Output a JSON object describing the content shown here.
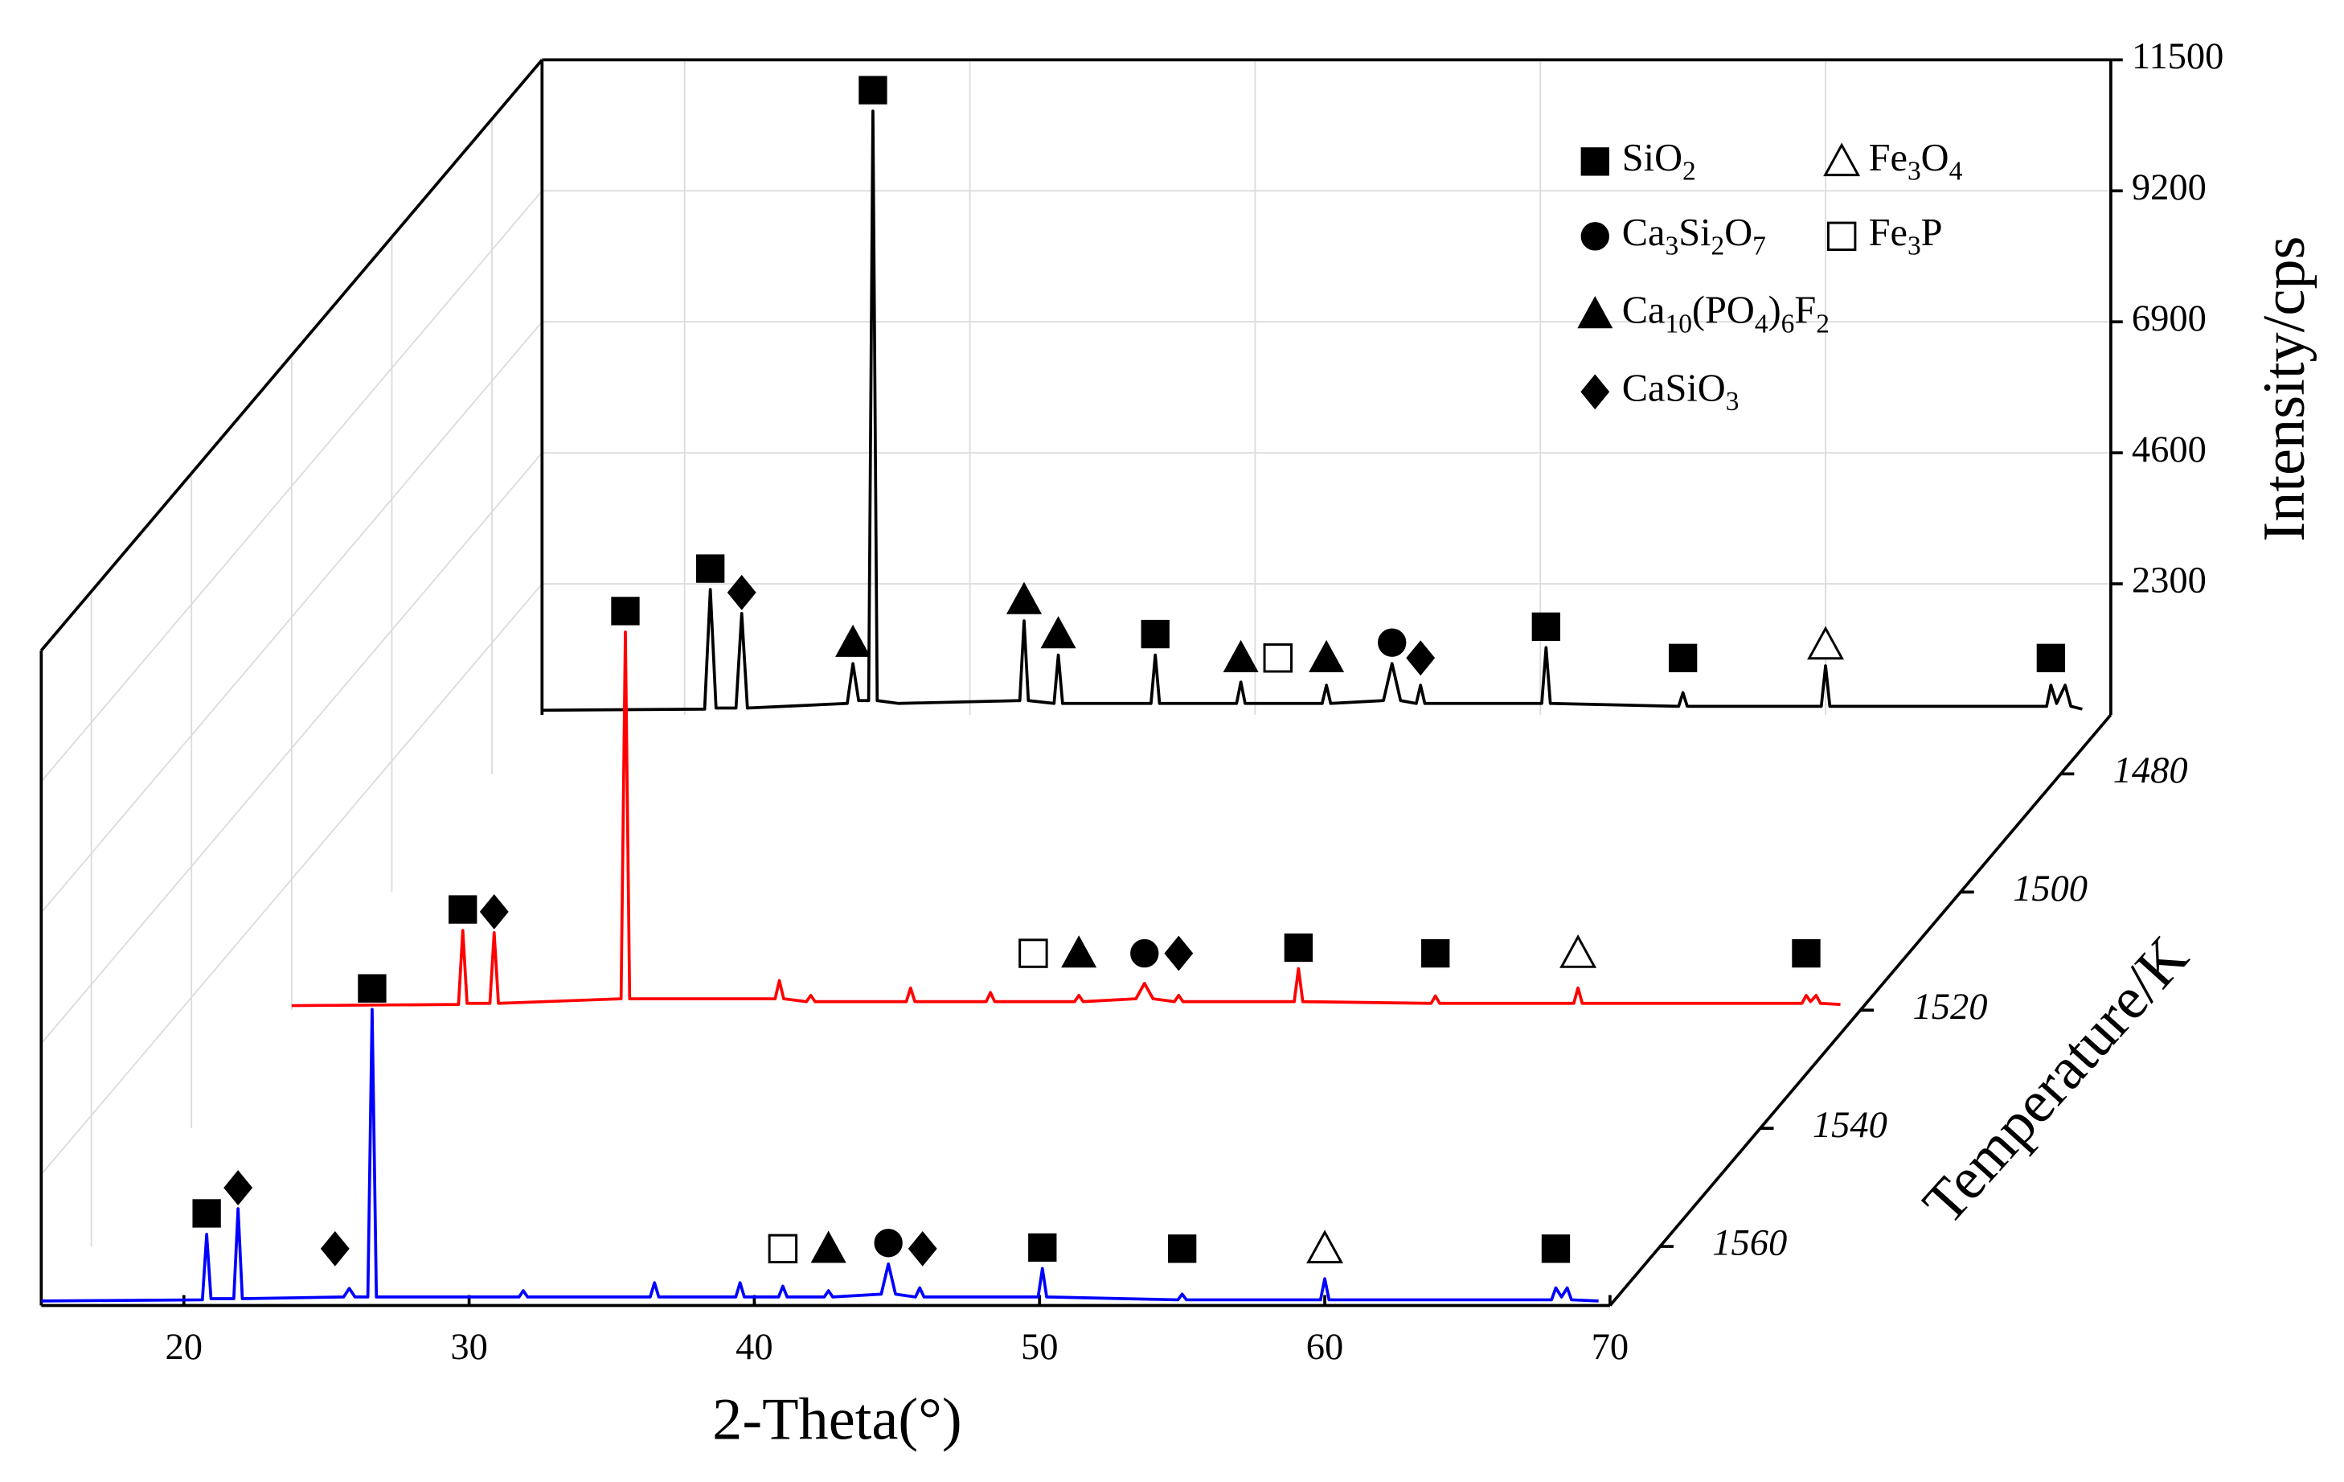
{
  "chart_data": {
    "type": "line",
    "xlabel": "2-Theta(°)",
    "ylabel": "Intensity/cps",
    "zlabel": "Temperature/K",
    "xlim": [
      15,
      70
    ],
    "xticks": [
      20,
      30,
      40,
      50,
      60,
      70
    ],
    "ylim": [
      0,
      11500
    ],
    "yticks": [
      2300,
      4600,
      6900,
      9200,
      11500
    ],
    "zlim": [
      1570,
      1470
    ],
    "zticks": [
      1480,
      1500,
      1520,
      1540,
      1560
    ],
    "grid": true,
    "legend": "upper right",
    "phases": [
      {
        "name": "SiO2",
        "marker": "square"
      },
      {
        "name": "Ca3Si2O7",
        "marker": "circle"
      },
      {
        "name": "Ca10(PO4)6F2",
        "marker": "triangle"
      },
      {
        "name": "CaSiO3",
        "marker": "diamond"
      },
      {
        "name": "Fe3O4",
        "marker": "triangle-open"
      },
      {
        "name": "Fe3P",
        "marker": "square-open"
      }
    ],
    "series": [
      {
        "color": "#000000",
        "z": 1470,
        "x": [
          15,
          20.7,
          20.9,
          21.1,
          21.8,
          22.0,
          22.2,
          25.7,
          25.9,
          26.1,
          26.45,
          26.6,
          26.75,
          27.5,
          31.75,
          31.9,
          32.05,
          32.95,
          33.1,
          33.25,
          36.35,
          36.5,
          36.65,
          39.35,
          39.5,
          39.65,
          42.35,
          42.5,
          42.65,
          44.5,
          44.8,
          45.1,
          45.65,
          45.8,
          45.95,
          50.05,
          50.2,
          50.35,
          54.85,
          55.0,
          55.15,
          59.85,
          60.0,
          60.15,
          67.75,
          67.9,
          68.1,
          68.4,
          68.6,
          69
        ],
        "values": [
          80,
          100,
          2200,
          120,
          120,
          1780,
          120,
          200,
          900,
          250,
          250,
          10600,
          250,
          200,
          250,
          1650,
          250,
          200,
          1050,
          200,
          200,
          1050,
          200,
          200,
          575,
          200,
          200,
          520,
          200,
          250,
          900,
          250,
          200,
          520,
          200,
          200,
          1180,
          200,
          150,
          390,
          150,
          150,
          860,
          150,
          150,
          520,
          200,
          520,
          150,
          100
        ],
        "peaks": [
          {
            "x": 20.9,
            "phase": 0
          },
          {
            "x": 22.0,
            "phase": 3
          },
          {
            "x": 25.9,
            "phase": 2
          },
          {
            "x": 26.6,
            "phase": 0
          },
          {
            "x": 31.9,
            "phase": 2
          },
          {
            "x": 33.1,
            "phase": 2
          },
          {
            "x": 36.5,
            "phase": 0
          },
          {
            "x": 39.5,
            "phase": 2
          },
          {
            "x": 40.8,
            "phase": 5
          },
          {
            "x": 42.5,
            "phase": 2
          },
          {
            "x": 44.8,
            "phase": 1
          },
          {
            "x": 45.8,
            "phase": 3
          },
          {
            "x": 50.2,
            "phase": 0
          },
          {
            "x": 55.0,
            "phase": 0
          },
          {
            "x": 60.0,
            "phase": 4
          },
          {
            "x": 67.9,
            "phase": 0
          }
        ]
      },
      {
        "color": "#ff0000",
        "z": 1520,
        "x": [
          15,
          20.85,
          21.0,
          21.15,
          21.95,
          22.1,
          22.25,
          26.55,
          26.7,
          26.85,
          31.95,
          32.1,
          32.25,
          33.05,
          33.2,
          33.35,
          36.55,
          36.7,
          36.85,
          39.35,
          39.5,
          39.65,
          42.45,
          42.6,
          42.75,
          44.6,
          44.9,
          45.2,
          45.95,
          46.1,
          46.25,
          50.15,
          50.3,
          50.45,
          54.95,
          55.1,
          55.25,
          59.95,
          60.1,
          60.25,
          67.95,
          68.1,
          68.25,
          68.45,
          68.6,
          69.3
        ],
        "values": [
          80,
          100,
          1400,
          120,
          120,
          1360,
          120,
          200,
          6640,
          200,
          200,
          520,
          200,
          150,
          260,
          150,
          150,
          390,
          150,
          150,
          310,
          150,
          150,
          260,
          150,
          200,
          470,
          200,
          150,
          260,
          150,
          150,
          730,
          150,
          120,
          250,
          120,
          120,
          390,
          120,
          120,
          260,
          150,
          260,
          120,
          100
        ],
        "peaks": [
          {
            "x": 21.0,
            "phase": 0
          },
          {
            "x": 22.1,
            "phase": 3
          },
          {
            "x": 26.7,
            "phase": 0
          },
          {
            "x": 41.0,
            "phase": 5
          },
          {
            "x": 42.6,
            "phase": 2
          },
          {
            "x": 44.9,
            "phase": 1
          },
          {
            "x": 46.1,
            "phase": 3
          },
          {
            "x": 50.3,
            "phase": 0
          },
          {
            "x": 55.1,
            "phase": 0
          },
          {
            "x": 60.1,
            "phase": 4
          },
          {
            "x": 68.1,
            "phase": 0
          }
        ]
      },
      {
        "color": "#0000ff",
        "z": 1570,
        "x": [
          15,
          20.65,
          20.8,
          20.95,
          21.75,
          21.9,
          22.05,
          25.6,
          25.8,
          26.0,
          26.45,
          26.6,
          26.75,
          31.75,
          31.9,
          32.05,
          36.35,
          36.5,
          36.65,
          39.35,
          39.5,
          39.65,
          40.85,
          41.0,
          41.15,
          42.45,
          42.6,
          42.75,
          44.45,
          44.7,
          44.95,
          45.65,
          45.8,
          45.95,
          49.95,
          50.1,
          50.25,
          54.85,
          55.0,
          55.15,
          59.85,
          60.0,
          60.15,
          67.95,
          68.1,
          68.3,
          68.5,
          68.65,
          69.6
        ],
        "values": [
          80,
          100,
          1250,
          120,
          120,
          1700,
          120,
          150,
          300,
          150,
          150,
          5200,
          150,
          150,
          260,
          150,
          150,
          400,
          150,
          150,
          400,
          150,
          150,
          340,
          150,
          150,
          260,
          150,
          200,
          730,
          200,
          150,
          310,
          150,
          150,
          650,
          150,
          100,
          200,
          100,
          100,
          470,
          100,
          100,
          310,
          150,
          310,
          100,
          80
        ],
        "peaks": [
          {
            "x": 20.8,
            "phase": 0
          },
          {
            "x": 21.9,
            "phase": 3
          },
          {
            "x": 25.3,
            "phase": 3
          },
          {
            "x": 26.6,
            "phase": 0
          },
          {
            "x": 41.0,
            "phase": 5
          },
          {
            "x": 42.6,
            "phase": 2
          },
          {
            "x": 44.7,
            "phase": 1
          },
          {
            "x": 45.9,
            "phase": 3
          },
          {
            "x": 50.1,
            "phase": 0
          },
          {
            "x": 55.0,
            "phase": 0
          },
          {
            "x": 60.0,
            "phase": 4
          },
          {
            "x": 68.1,
            "phase": 0
          }
        ]
      }
    ]
  }
}
